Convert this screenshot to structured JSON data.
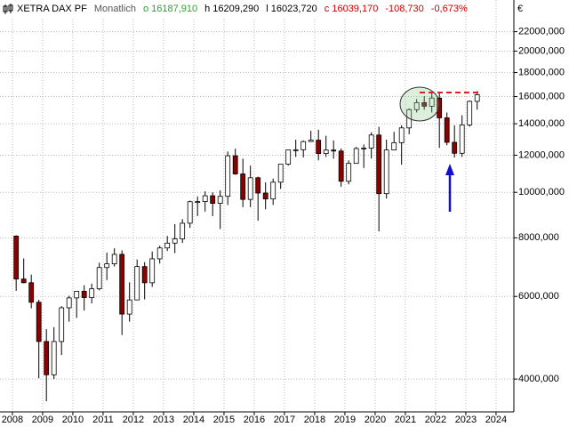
{
  "chart_data": {
    "type": "candlestick",
    "title": "XETRA DAX PF",
    "subtitle": "Monatlich",
    "quote": [
      {
        "text": "o 16187,910",
        "color": "#22aa22"
      },
      {
        "text": "h 16209,290",
        "color": "#000000"
      },
      {
        "text": "l 16023,720",
        "color": "#000000"
      },
      {
        "text": "c 16039,170",
        "color": "#cc0000"
      },
      {
        "text": "-108,730",
        "color": "#cc0000"
      },
      {
        "text": "-0,673%",
        "color": "#cc0000"
      }
    ],
    "currency": "€",
    "x": [
      2008.125,
      2008.375,
      2008.625,
      2008.875,
      2009.125,
      2009.375,
      2009.625,
      2009.875,
      2010.125,
      2010.375,
      2010.625,
      2010.875,
      2011.125,
      2011.375,
      2011.625,
      2011.875,
      2012.125,
      2012.375,
      2012.625,
      2012.875,
      2013.125,
      2013.375,
      2013.625,
      2013.875,
      2014.125,
      2014.375,
      2014.625,
      2014.875,
      2015.125,
      2015.375,
      2015.625,
      2015.875,
      2016.125,
      2016.375,
      2016.625,
      2016.875,
      2017.125,
      2017.375,
      2017.625,
      2017.875,
      2018.125,
      2018.375,
      2018.625,
      2018.875,
      2019.125,
      2019.375,
      2019.625,
      2019.875,
      2020.125,
      2020.375,
      2020.625,
      2020.875,
      2021.125,
      2021.375,
      2021.625,
      2021.875,
      2022.125,
      2022.375,
      2022.625,
      2022.875,
      2023.125,
      2023.375
    ],
    "open": [
      8067,
      6535,
      6418,
      5831,
      4810,
      4085,
      4809,
      5675,
      5957,
      6154,
      5966,
      6229,
      6914,
      7041,
      7376,
      5502,
      5898,
      6947,
      6416,
      7216,
      7612,
      7795,
      7959,
      8594,
      9552,
      9556,
      9833,
      9474,
      9806,
      11966,
      10945,
      9660,
      10743,
      9965,
      9680,
      10511,
      11481,
      12313,
      12325,
      12829,
      12918,
      12097,
      12306,
      12247,
      10559,
      11526,
      12399,
      12428,
      13249,
      9936,
      12311,
      12761,
      13719,
      15008,
      15531,
      15261,
      15885,
      14415,
      12784,
      12114,
      13924,
      15629
    ],
    "high": [
      8100,
      7231,
      6680,
      5900,
      5111,
      5160,
      5720,
      6020,
      6160,
      6340,
      6390,
      7080,
      7440,
      7600,
      7520,
      6430,
      7194,
      7100,
      7480,
      7700,
      8074,
      8558,
      8770,
      9600,
      9800,
      10050,
      10000,
      10100,
      12220,
      12391,
      11800,
      11400,
      10800,
      10500,
      10700,
      11480,
      12300,
      12950,
      12900,
      13526,
      13600,
      13200,
      12900,
      12400,
      11700,
      12500,
      12650,
      13430,
      13800,
      12950,
      13460,
      13900,
      15100,
      15800,
      16030,
      16290,
      16285,
      14800,
      13900,
      14600,
      15700,
      16427
    ],
    "low": [
      6167,
      6400,
      5660,
      4014,
      3588,
      4000,
      4500,
      5300,
      5400,
      5600,
      5800,
      6180,
      6500,
      6950,
      4965,
      5300,
      5900,
      5914,
      6290,
      7050,
      7500,
      7420,
      7800,
      8400,
      8900,
      9100,
      8900,
      8355,
      9400,
      10900,
      9300,
      9300,
      8700,
      9200,
      9400,
      10170,
      11400,
      11900,
      11870,
      12850,
      11700,
      11900,
      11800,
      10280,
      10400,
      11600,
      11270,
      11800,
      8256,
      9700,
      12300,
      11450,
      13300,
      14800,
      15000,
      14800,
      12439,
      12600,
      11863,
      11900,
      13800,
      15000
    ],
    "close": [
      6535,
      6418,
      5831,
      4810,
      4085,
      4809,
      5675,
      5957,
      6154,
      5966,
      6229,
      6914,
      7041,
      7376,
      5502,
      5898,
      6947,
      6416,
      7216,
      7612,
      7795,
      7959,
      8594,
      9552,
      9556,
      9833,
      9474,
      9806,
      11966,
      10945,
      9660,
      10743,
      9965,
      9680,
      10511,
      11481,
      12313,
      12325,
      12829,
      12918,
      12097,
      12306,
      12247,
      10559,
      11526,
      12399,
      12428,
      13249,
      9936,
      12311,
      12761,
      13719,
      15008,
      15531,
      15261,
      15885,
      14415,
      12784,
      12114,
      13924,
      15629,
      16148
    ],
    "up_color": "#ffffff",
    "down_color": "#8b0000",
    "xlim": [
      2007.59,
      2024.59
    ],
    "xticks": [
      2008,
      2009,
      2010,
      2011,
      2012,
      2013,
      2014,
      2015,
      2016,
      2017,
      2018,
      2019,
      2020,
      2021,
      2022,
      2023,
      2024
    ],
    "ylim": [
      3420,
      25700
    ],
    "log_scale": true,
    "yticks": [
      {
        "value": 4000,
        "label": "4000,000"
      },
      {
        "value": 6000,
        "label": "6000,000"
      },
      {
        "value": 8000,
        "label": "8000,000"
      },
      {
        "value": 10000,
        "label": "10000,000"
      },
      {
        "value": 12000,
        "label": "12000,000"
      },
      {
        "value": 14000,
        "label": "14000,000"
      },
      {
        "value": 16000,
        "label": "16000,000"
      },
      {
        "value": 18000,
        "label": "18000,000"
      },
      {
        "value": 20000,
        "label": "20000,000"
      },
      {
        "value": 22000,
        "label": "22000,000"
      }
    ],
    "grid": true
  }
}
